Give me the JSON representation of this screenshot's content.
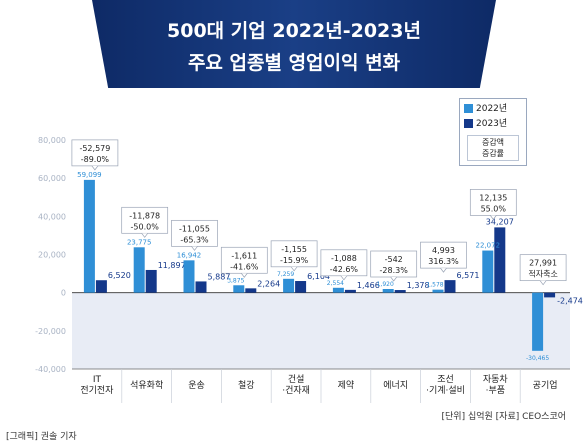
{
  "header": {
    "title_line1": "500대 기업 2022년-2023년",
    "title_line2": "주요 업종별 영업이익 변화"
  },
  "legend": {
    "series1": "2022년",
    "series2": "2023년",
    "note_line1": "증감액",
    "note_line2": "증감률"
  },
  "colors": {
    "series_2022": "#2f8fd6",
    "series_2023": "#14388a",
    "title_bg": "#142f6e",
    "negative_bg": "#e8ecf5"
  },
  "chart_data": {
    "type": "bar",
    "categories": [
      "IT\n전기전자",
      "석유화학",
      "운송",
      "철강",
      "건설\n·건자재",
      "제약",
      "에너지",
      "조선\n·기계·설비",
      "자동차\n·부품",
      "공기업"
    ],
    "series": [
      {
        "name": "2022년",
        "values": [
          59099,
          23775,
          16942,
          3875,
          7259,
          2554,
          1920,
          1578,
          22072,
          -30465
        ],
        "labels": [
          "59,099",
          "23,775",
          "16,942",
          "3,875",
          "7,259",
          "2,554",
          "1,920",
          "1,578",
          "22,072",
          "-30,465"
        ]
      },
      {
        "name": "2023년",
        "values": [
          6520,
          11897,
          5887,
          2264,
          6104,
          1466,
          1378,
          6571,
          34207,
          -2474
        ],
        "labels": [
          "6,520",
          "11,897",
          "5,887",
          "2,264",
          "6,104",
          "1,466",
          "1,378",
          "6,571",
          "34,207",
          "-2,474"
        ]
      }
    ],
    "changes": [
      {
        "amount": "-52,579",
        "rate": "-89.0%"
      },
      {
        "amount": "-11,878",
        "rate": "-50.0%"
      },
      {
        "amount": "-11,055",
        "rate": "-65.3%"
      },
      {
        "amount": "-1,611",
        "rate": "-41.6%"
      },
      {
        "amount": "-1,155",
        "rate": "-15.9%"
      },
      {
        "amount": "-1,088",
        "rate": "-42.6%"
      },
      {
        "amount": "-542",
        "rate": "-28.3%"
      },
      {
        "amount": "4,993",
        "rate": "316.3%"
      },
      {
        "amount": "12,135",
        "rate": "55.0%"
      },
      {
        "amount": "27,991",
        "rate": "적자축소"
      }
    ],
    "yticks": [
      80000,
      60000,
      40000,
      20000,
      0,
      -20000,
      -40000
    ],
    "ytick_labels": [
      "80,000",
      "60,000",
      "40,000",
      "20,000",
      "0",
      "-20,000",
      "-40,000"
    ],
    "ylim": [
      -40000,
      80000
    ],
    "grid": false,
    "legend_position": "top-right"
  },
  "footer": {
    "unit_source": "[단위] 십억원  [자료] CEO스코어",
    "credit": "[그래픽] 권솔 기자"
  }
}
